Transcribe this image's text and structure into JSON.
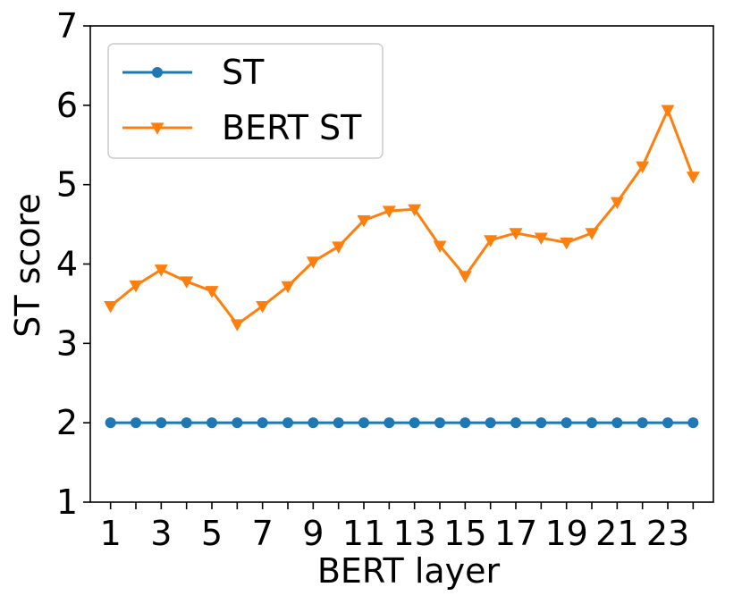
{
  "chart_data": {
    "type": "line",
    "xlabel": "BERT layer",
    "ylabel": "ST score",
    "x": [
      1,
      2,
      3,
      4,
      5,
      6,
      7,
      8,
      9,
      10,
      11,
      12,
      13,
      14,
      15,
      16,
      17,
      18,
      19,
      20,
      21,
      22,
      23,
      24
    ],
    "xlim": [
      0.2,
      24.8
    ],
    "ylim": [
      1,
      7
    ],
    "xticks": [
      1,
      3,
      5,
      7,
      9,
      11,
      13,
      15,
      17,
      19,
      21,
      23
    ],
    "yticks": [
      1,
      2,
      3,
      4,
      5,
      6,
      7
    ],
    "grid": false,
    "legend_position": "top-left",
    "series": [
      {
        "name": "ST",
        "color": "#1f77b4",
        "marker": "circle",
        "values": [
          2,
          2,
          2,
          2,
          2,
          2,
          2,
          2,
          2,
          2,
          2,
          2,
          2,
          2,
          2,
          2,
          2,
          2,
          2,
          2,
          2,
          2,
          2,
          2
        ]
      },
      {
        "name": "BERT ST",
        "color": "#ff7f0e",
        "marker": "triangle-down",
        "values": [
          3.47,
          3.73,
          3.93,
          3.78,
          3.66,
          3.24,
          3.47,
          3.72,
          4.03,
          4.22,
          4.55,
          4.67,
          4.69,
          4.23,
          3.85,
          4.3,
          4.39,
          4.33,
          4.27,
          4.39,
          4.78,
          5.23,
          5.94,
          5.1
        ]
      }
    ]
  }
}
